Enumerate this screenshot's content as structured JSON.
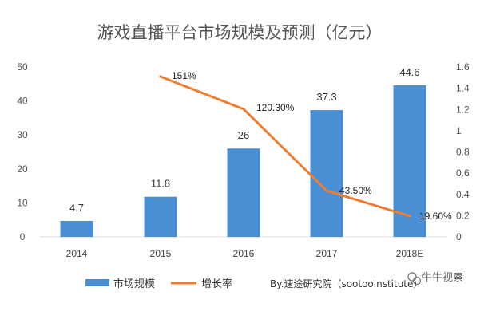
{
  "chart_data": {
    "type": "bar",
    "title": "游戏直播平台市场规模及预测（亿元）",
    "categories": [
      "2014",
      "2015",
      "2016",
      "2017",
      "2018E"
    ],
    "series": [
      {
        "name": "市场规模",
        "type": "bar",
        "axis": "left",
        "color": "#4a8fd4",
        "values": [
          4.7,
          11.8,
          26,
          37.3,
          44.6
        ],
        "labels": [
          "4.7",
          "11.8",
          "26",
          "37.3",
          "44.6"
        ]
      },
      {
        "name": "增长率",
        "type": "line",
        "axis": "right",
        "color": "#ed7d31",
        "values": [
          null,
          1.51,
          1.203,
          0.435,
          0.196
        ],
        "labels": [
          "",
          "151%",
          "120.30%",
          "43.50%",
          "19.60%"
        ]
      }
    ],
    "y_left": {
      "ylim": [
        0,
        50
      ],
      "ticks": [
        "0",
        "10",
        "20",
        "30",
        "40",
        "50"
      ]
    },
    "y_right": {
      "ylim": [
        0,
        1.6
      ],
      "ticks": [
        "0",
        "0.2",
        "0.4",
        "0.6",
        "0.8",
        "1",
        "1.2",
        "1.4",
        "1.6"
      ]
    },
    "legend_position": "bottom-left",
    "grid": false
  },
  "source": "By.速途研究院（sootooinstitute）",
  "watermark": "牛牛视察"
}
